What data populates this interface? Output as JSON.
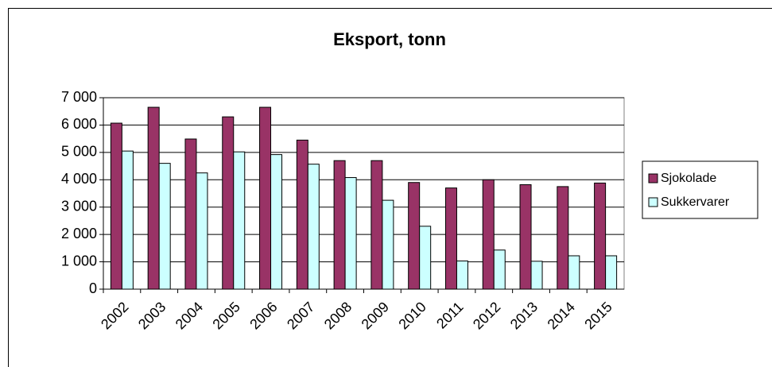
{
  "chart_data": {
    "type": "bar",
    "title": "Eksport, tonn",
    "categories": [
      "2002",
      "2003",
      "2004",
      "2005",
      "2006",
      "2007",
      "2008",
      "2009",
      "2010",
      "2011",
      "2012",
      "2013",
      "2014",
      "2015"
    ],
    "series": [
      {
        "name": "Sjokolade",
        "color": "#993366",
        "values": [
          6070,
          6650,
          5490,
          6300,
          6650,
          5450,
          4700,
          4700,
          3900,
          3700,
          4000,
          3820,
          3750,
          3880
        ]
      },
      {
        "name": "Sukkervarer",
        "color": "#ccffff",
        "values": [
          5050,
          4600,
          4250,
          5020,
          4920,
          4570,
          4080,
          3250,
          2300,
          1030,
          1430,
          1020,
          1220,
          1220
        ]
      }
    ],
    "ylim": [
      0,
      7000
    ],
    "yticks": [
      0,
      {
        "value": 1000,
        "label": "1 000"
      },
      {
        "value": 2000,
        "label": "2 000"
      },
      {
        "value": 3000,
        "label": "3 000"
      },
      {
        "value": 4000,
        "label": "4 000"
      },
      {
        "value": 5000,
        "label": "5 000"
      },
      {
        "value": 6000,
        "label": "6 000"
      },
      {
        "value": 7000,
        "label": "7 000"
      }
    ],
    "grid": true,
    "legend": "right"
  }
}
